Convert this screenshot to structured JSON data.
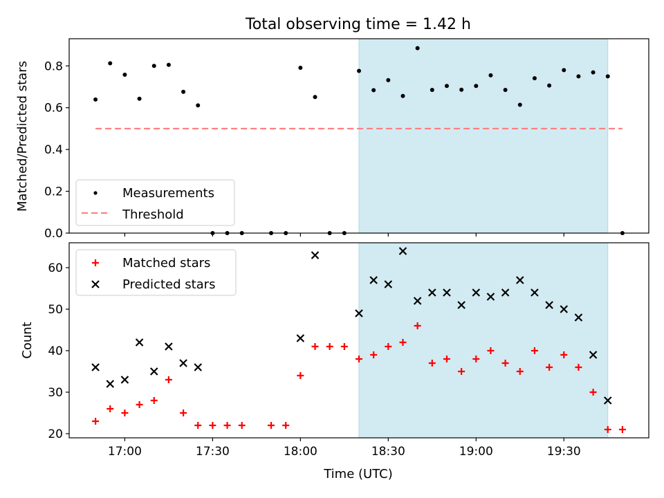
{
  "figure": {
    "title": "Total observing time = 1.42 h",
    "xlabel": "Time (UTC)"
  },
  "colors": {
    "measurement": "#000000",
    "threshold": "#ff7f7f",
    "matched": "#ff0000",
    "predicted": "#000000",
    "shade": "#add8e6"
  },
  "chart_data": [
    {
      "type": "scatter",
      "panel": "top",
      "ylabel": "Matched/Predicted stars",
      "ylim": [
        0,
        0.93
      ],
      "yticks": [
        0.0,
        0.2,
        0.4,
        0.6,
        0.8
      ],
      "ytick_labels": [
        "0.0",
        "0.2",
        "0.4",
        "0.6",
        "0.8"
      ],
      "xlim": [
        "16:41",
        "19:59"
      ],
      "xticks": [
        "17:00",
        "17:30",
        "18:00",
        "18:30",
        "19:00",
        "19:30"
      ],
      "shaded_interval": [
        "18:20",
        "19:45"
      ],
      "legend": {
        "location": "lower-left",
        "entries": [
          "Measurements",
          "Threshold"
        ]
      },
      "threshold": {
        "name": "Threshold",
        "value": 0.5,
        "x_range": [
          "16:50",
          "19:50"
        ]
      },
      "series": [
        {
          "name": "Measurements",
          "marker": "dot",
          "points": [
            {
              "x": "16:50",
              "y": 0.639
            },
            {
              "x": "16:55",
              "y": 0.8125
            },
            {
              "x": "17:00",
              "y": 0.758
            },
            {
              "x": "17:05",
              "y": 0.643
            },
            {
              "x": "17:10",
              "y": 0.8
            },
            {
              "x": "17:15",
              "y": 0.805
            },
            {
              "x": "17:20",
              "y": 0.676
            },
            {
              "x": "17:25",
              "y": 0.611
            },
            {
              "x": "17:30",
              "y": 0.0
            },
            {
              "x": "17:35",
              "y": 0.0
            },
            {
              "x": "17:40",
              "y": 0.0
            },
            {
              "x": "17:50",
              "y": 0.0
            },
            {
              "x": "17:55",
              "y": 0.0
            },
            {
              "x": "18:00",
              "y": 0.791
            },
            {
              "x": "18:05",
              "y": 0.651
            },
            {
              "x": "18:10",
              "y": 0.0
            },
            {
              "x": "18:15",
              "y": 0.0
            },
            {
              "x": "18:20",
              "y": 0.776
            },
            {
              "x": "18:25",
              "y": 0.684
            },
            {
              "x": "18:30",
              "y": 0.732
            },
            {
              "x": "18:35",
              "y": 0.656
            },
            {
              "x": "18:40",
              "y": 0.885
            },
            {
              "x": "18:45",
              "y": 0.685
            },
            {
              "x": "18:50",
              "y": 0.704
            },
            {
              "x": "18:55",
              "y": 0.686
            },
            {
              "x": "19:00",
              "y": 0.704
            },
            {
              "x": "19:05",
              "y": 0.755
            },
            {
              "x": "19:10",
              "y": 0.685
            },
            {
              "x": "19:15",
              "y": 0.614
            },
            {
              "x": "19:20",
              "y": 0.741
            },
            {
              "x": "19:25",
              "y": 0.706
            },
            {
              "x": "19:30",
              "y": 0.78
            },
            {
              "x": "19:35",
              "y": 0.75
            },
            {
              "x": "19:40",
              "y": 0.769
            },
            {
              "x": "19:45",
              "y": 0.75
            },
            {
              "x": "19:50",
              "y": 0.0
            }
          ]
        }
      ]
    },
    {
      "type": "scatter",
      "panel": "bottom",
      "ylabel": "Count",
      "ylim": [
        19,
        66
      ],
      "yticks": [
        20,
        30,
        40,
        50,
        60
      ],
      "ytick_labels": [
        "20",
        "30",
        "40",
        "50",
        "60"
      ],
      "xlim": [
        "16:41",
        "19:59"
      ],
      "xticks": [
        "17:00",
        "17:30",
        "18:00",
        "18:30",
        "19:00",
        "19:30"
      ],
      "xtick_labels": [
        "17:00",
        "17:30",
        "18:00",
        "18:30",
        "19:00",
        "19:30"
      ],
      "shaded_interval": [
        "18:20",
        "19:45"
      ],
      "legend": {
        "location": "upper-left",
        "entries": [
          "Matched stars",
          "Predicted stars"
        ]
      },
      "series": [
        {
          "name": "Matched stars",
          "marker": "plus",
          "points": [
            {
              "x": "16:50",
              "y": 23
            },
            {
              "x": "16:55",
              "y": 26
            },
            {
              "x": "17:00",
              "y": 25
            },
            {
              "x": "17:05",
              "y": 27
            },
            {
              "x": "17:10",
              "y": 28
            },
            {
              "x": "17:15",
              "y": 33
            },
            {
              "x": "17:20",
              "y": 25
            },
            {
              "x": "17:25",
              "y": 22
            },
            {
              "x": "17:30",
              "y": 22
            },
            {
              "x": "17:35",
              "y": 22
            },
            {
              "x": "17:40",
              "y": 22
            },
            {
              "x": "17:50",
              "y": 22
            },
            {
              "x": "17:55",
              "y": 22
            },
            {
              "x": "18:00",
              "y": 34
            },
            {
              "x": "18:05",
              "y": 41
            },
            {
              "x": "18:10",
              "y": 41
            },
            {
              "x": "18:15",
              "y": 41
            },
            {
              "x": "18:20",
              "y": 38
            },
            {
              "x": "18:25",
              "y": 39
            },
            {
              "x": "18:30",
              "y": 41
            },
            {
              "x": "18:35",
              "y": 42
            },
            {
              "x": "18:40",
              "y": 46
            },
            {
              "x": "18:45",
              "y": 37
            },
            {
              "x": "18:50",
              "y": 38
            },
            {
              "x": "18:55",
              "y": 35
            },
            {
              "x": "19:00",
              "y": 38
            },
            {
              "x": "19:05",
              "y": 40
            },
            {
              "x": "19:10",
              "y": 37
            },
            {
              "x": "19:15",
              "y": 35
            },
            {
              "x": "19:20",
              "y": 40
            },
            {
              "x": "19:25",
              "y": 36
            },
            {
              "x": "19:30",
              "y": 39
            },
            {
              "x": "19:35",
              "y": 36
            },
            {
              "x": "19:40",
              "y": 30
            },
            {
              "x": "19:45",
              "y": 21
            },
            {
              "x": "19:50",
              "y": 21
            }
          ]
        },
        {
          "name": "Predicted stars",
          "marker": "x",
          "points": [
            {
              "x": "16:50",
              "y": 36
            },
            {
              "x": "16:55",
              "y": 32
            },
            {
              "x": "17:00",
              "y": 33
            },
            {
              "x": "17:05",
              "y": 42
            },
            {
              "x": "17:10",
              "y": 35
            },
            {
              "x": "17:15",
              "y": 41
            },
            {
              "x": "17:20",
              "y": 37
            },
            {
              "x": "17:25",
              "y": 36
            },
            {
              "x": "18:00",
              "y": 43
            },
            {
              "x": "18:05",
              "y": 63
            },
            {
              "x": "18:20",
              "y": 49
            },
            {
              "x": "18:25",
              "y": 57
            },
            {
              "x": "18:30",
              "y": 56
            },
            {
              "x": "18:35",
              "y": 64
            },
            {
              "x": "18:40",
              "y": 52
            },
            {
              "x": "18:45",
              "y": 54
            },
            {
              "x": "18:50",
              "y": 54
            },
            {
              "x": "18:55",
              "y": 51
            },
            {
              "x": "19:00",
              "y": 54
            },
            {
              "x": "19:05",
              "y": 53
            },
            {
              "x": "19:10",
              "y": 54
            },
            {
              "x": "19:15",
              "y": 57
            },
            {
              "x": "19:20",
              "y": 54
            },
            {
              "x": "19:25",
              "y": 51
            },
            {
              "x": "19:30",
              "y": 50
            },
            {
              "x": "19:35",
              "y": 48
            },
            {
              "x": "19:40",
              "y": 39
            },
            {
              "x": "19:45",
              "y": 28
            }
          ]
        }
      ]
    }
  ]
}
